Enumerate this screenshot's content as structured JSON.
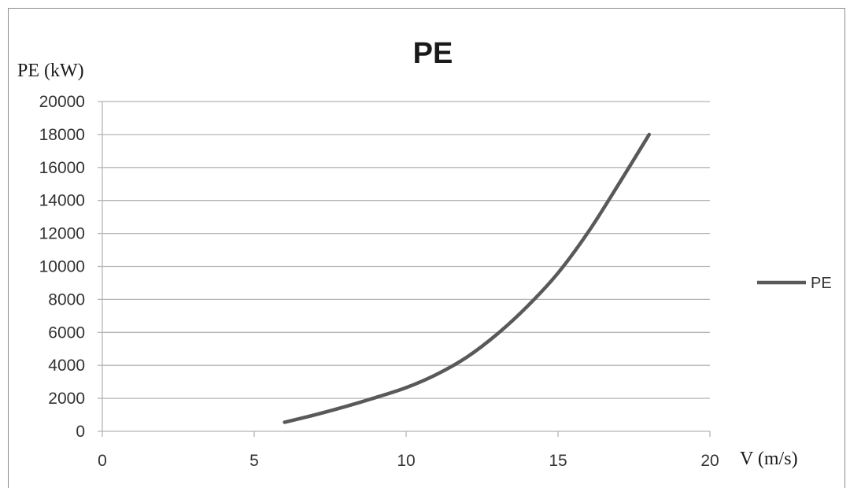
{
  "chart_data": {
    "type": "line",
    "title": "PE",
    "xlabel": "V (m/s)",
    "ylabel": "PE (kW)",
    "xlim": [
      0,
      20
    ],
    "ylim": [
      0,
      20000
    ],
    "x_ticks": [
      0,
      5,
      10,
      15,
      20
    ],
    "y_ticks": [
      0,
      2000,
      4000,
      6000,
      8000,
      10000,
      12000,
      14000,
      16000,
      18000,
      20000
    ],
    "grid": "horizontal",
    "legend_position": "right",
    "series": [
      {
        "name": "PE",
        "color": "#595959",
        "x": [
          6,
          7,
          8,
          9,
          10,
          11,
          12,
          13,
          14,
          15,
          16,
          17,
          18
        ],
        "y": [
          550,
          1000,
          1500,
          2050,
          2650,
          3450,
          4500,
          5900,
          7600,
          9600,
          12100,
          15000,
          18000
        ]
      }
    ]
  }
}
